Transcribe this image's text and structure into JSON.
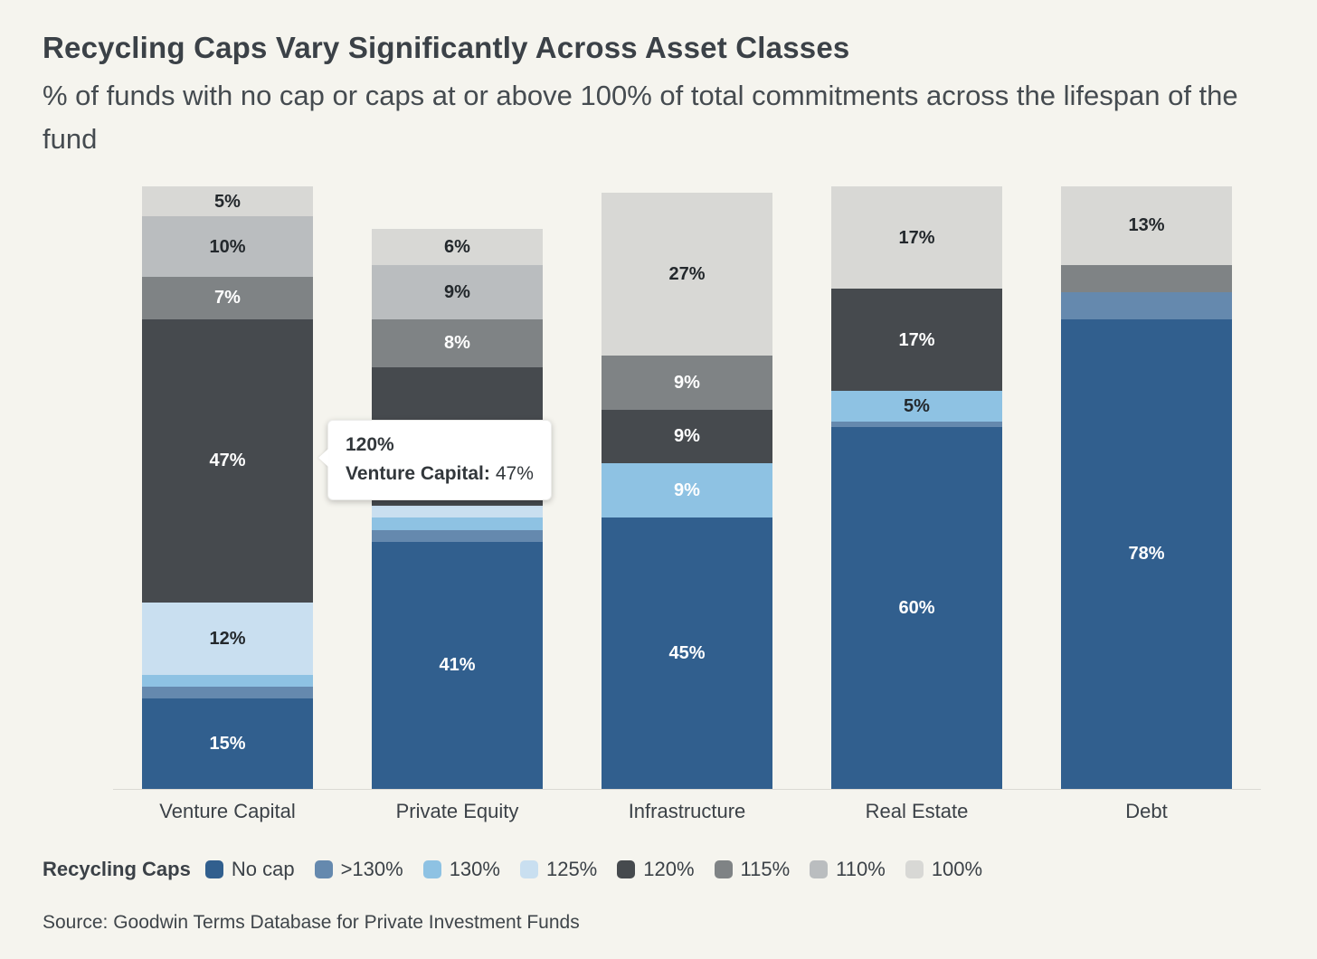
{
  "header": {
    "title": "Recycling Caps Vary Significantly Across Asset Classes",
    "subtitle": "% of funds with no cap or caps at or above 100% of total commitments across the lifespan of the fund"
  },
  "tooltip": {
    "title": "120%",
    "series_label": "Venture Capital:",
    "value": "47%"
  },
  "legend": {
    "title": "Recycling Caps",
    "items": [
      {
        "label": "No cap",
        "color": "#315f8e",
        "text_color": "#ffffff"
      },
      {
        "label": ">130%",
        "color": "#6589ae",
        "text_color": "#ffffff"
      },
      {
        "label": "130%",
        "color": "#8ec2e3",
        "text_color": "#ffffff"
      },
      {
        "label": "125%",
        "color": "#c9dff0",
        "text_color": "#23282c"
      },
      {
        "label": "120%",
        "color": "#464a4e",
        "text_color": "#ffffff"
      },
      {
        "label": "115%",
        "color": "#7f8385",
        "text_color": "#ffffff"
      },
      {
        "label": "110%",
        "color": "#babdbf",
        "text_color": "#23282c"
      },
      {
        "label": "100%",
        "color": "#d8d8d5",
        "text_color": "#23282c"
      }
    ]
  },
  "source": "Source: Goodwin Terms Database for Private Investment Funds",
  "chart_data": {
    "type": "bar",
    "stacked": true,
    "unit": "%",
    "ylim": [
      0,
      100
    ],
    "grid": false,
    "legend_position": "bottom",
    "title": "Recycling Caps Vary Significantly Across Asset Classes",
    "categories": [
      "Venture Capital",
      "Private Equity",
      "Infrastructure",
      "Real Estate",
      "Debt"
    ],
    "series": [
      {
        "name": "No cap",
        "values": [
          15,
          41,
          45,
          60,
          78
        ]
      },
      {
        "name": ">130%",
        "values": [
          2,
          2,
          0,
          1,
          4.5
        ]
      },
      {
        "name": "130%",
        "values": [
          2,
          2,
          9,
          5,
          0
        ]
      },
      {
        "name": "125%",
        "values": [
          12,
          2,
          0,
          0,
          0
        ]
      },
      {
        "name": "120%",
        "values": [
          47,
          23,
          9,
          17,
          0
        ]
      },
      {
        "name": "115%",
        "values": [
          7,
          8,
          9,
          0,
          4.5
        ]
      },
      {
        "name": "110%",
        "values": [
          10,
          9,
          0,
          0,
          0
        ]
      },
      {
        "name": "100%",
        "values": [
          5,
          6,
          27,
          17,
          13
        ]
      }
    ],
    "label_rule": "segments with value >= 5 show rounded percent label",
    "label_overrides": [
      {
        "category": "Real Estate",
        "series": "130%",
        "text_color": "#23282c"
      }
    ]
  }
}
